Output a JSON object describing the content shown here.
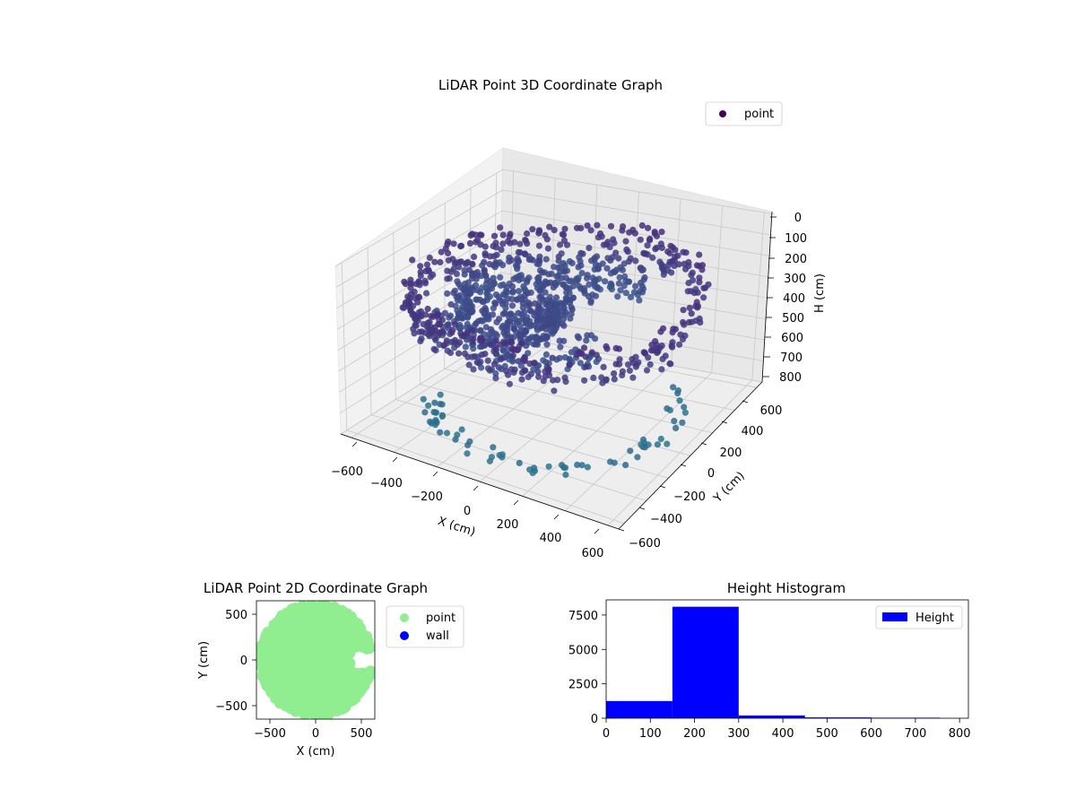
{
  "chart_data": [
    {
      "type": "scatter",
      "projection": "3d",
      "title": "LiDAR Point 3D Coordinate Graph",
      "xlabel": "X (cm)",
      "ylabel": "Y (cm)",
      "zlabel": "H (cm)",
      "xlim": [
        -650,
        650
      ],
      "ylim": [
        -650,
        650
      ],
      "zlim": [
        800,
        0
      ],
      "z_inverted": true,
      "xticks": [
        "−600",
        "−400",
        "−200",
        "0",
        "200",
        "400",
        "600"
      ],
      "yticks": [
        "−600",
        "−400",
        "−200",
        "0",
        "200",
        "400",
        "600"
      ],
      "zticks": [
        "0",
        "100",
        "200",
        "300",
        "400",
        "500",
        "600",
        "700",
        "800"
      ],
      "legend": {
        "labels": [
          "point"
        ],
        "colors": [
          "#440154"
        ],
        "placement": "top-right"
      },
      "colormap": "viridis",
      "description_points": {
        "outer_wall": {
          "radius_approx": 600,
          "height_range": [
            150,
            300
          ]
        },
        "floor_ring": {
          "radius_approx": 500,
          "height_approx": 780
        }
      },
      "grid": true
    },
    {
      "type": "scatter",
      "title": "LiDAR Point 2D Coordinate Graph",
      "xlabel": "X (cm)",
      "ylabel": "Y (cm)",
      "xlim": [
        -650,
        650
      ],
      "ylim": [
        -650,
        650
      ],
      "xticks": [
        "−500",
        "0",
        "500"
      ],
      "yticks": [
        "−500",
        "0",
        "500"
      ],
      "series": [
        {
          "name": "point",
          "color": "#90ee90"
        },
        {
          "name": "wall",
          "color": "#0000ff"
        }
      ],
      "legend": {
        "placement": "outside-right"
      }
    },
    {
      "type": "bar",
      "title": "Height Histogram",
      "xlim": [
        0,
        820
      ],
      "ylim": [
        0,
        8600
      ],
      "xticks": [
        "0",
        "100",
        "200",
        "300",
        "400",
        "500",
        "600",
        "700",
        "800"
      ],
      "yticks": [
        "0",
        "2500",
        "5000",
        "7500"
      ],
      "bins": [
        {
          "start": 0,
          "end": 150,
          "count": 1250
        },
        {
          "start": 150,
          "end": 300,
          "count": 8100
        },
        {
          "start": 300,
          "end": 450,
          "count": 200
        },
        {
          "start": 450,
          "end": 600,
          "count": 60
        },
        {
          "start": 600,
          "end": 755,
          "count": 40
        }
      ],
      "color": "#0000ff",
      "series": [
        {
          "name": "Height"
        }
      ],
      "legend": {
        "placement": "top-right"
      }
    }
  ]
}
